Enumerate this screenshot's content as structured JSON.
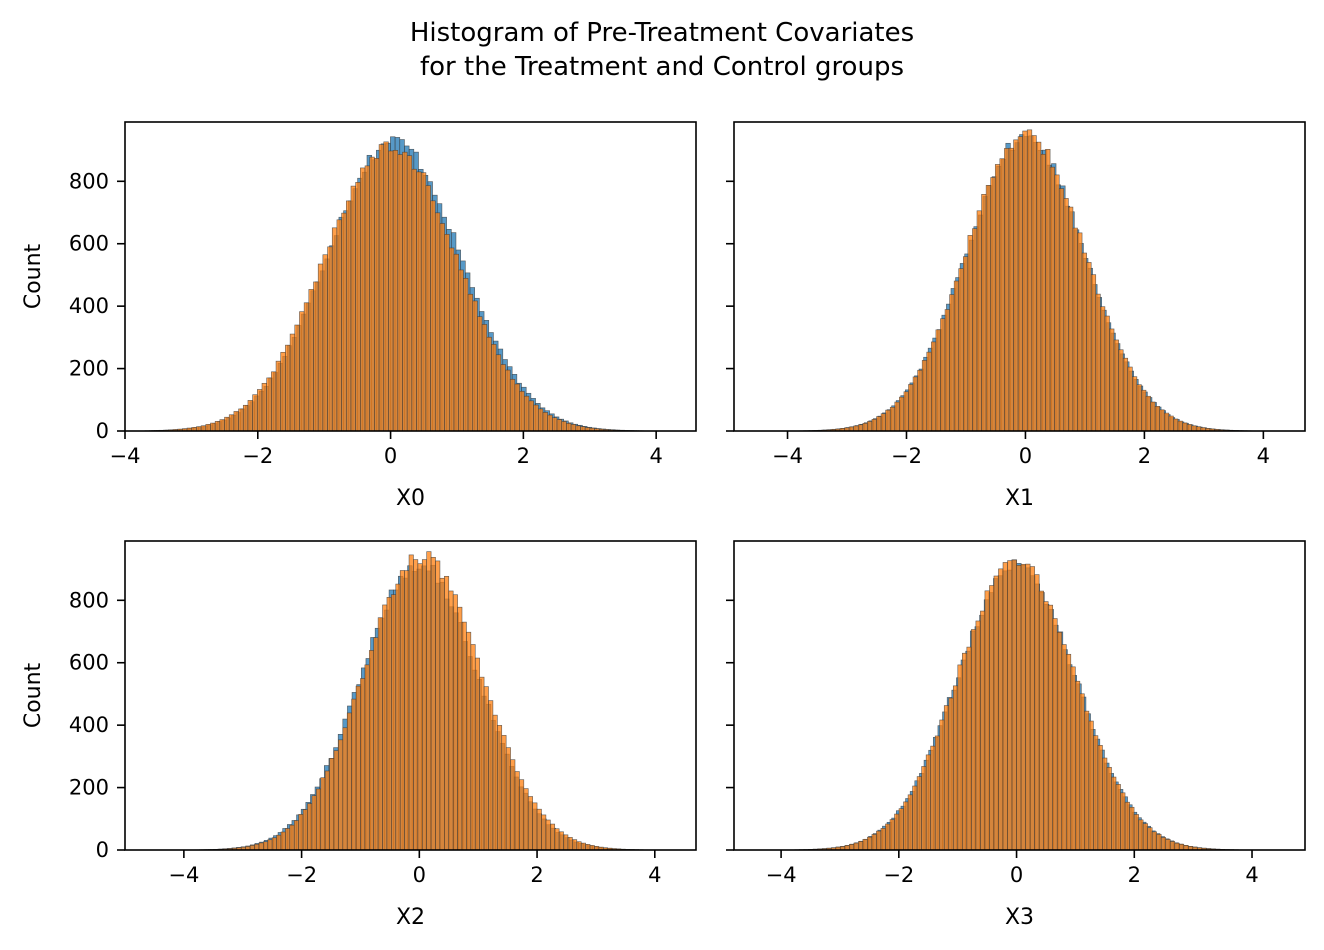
{
  "figure": {
    "title_line1": "Histogram of Pre-Treatment Covariates",
    "title_line2": "for the Treatment and Control groups"
  },
  "colors": {
    "treatment": "#1f77b4",
    "control": "#ff7f0e"
  },
  "chart_data": [
    {
      "type": "bar",
      "panel": "top-left",
      "xlabel": "X0",
      "ylabel": "Count",
      "xlim": [
        -4,
        4.6
      ],
      "ylim": [
        0,
        990
      ],
      "xticks": [
        -4,
        -2,
        0,
        2,
        4
      ],
      "yticks": [
        0,
        200,
        400,
        600,
        800
      ],
      "show_ytick_labels": true,
      "grid": false,
      "series": [
        {
          "color": "#1f77b4",
          "mean": 0.05,
          "sd": 1.0,
          "peak": 930,
          "x_range": [
            -3.6,
            4.3
          ]
        },
        {
          "color": "#ff7f0e",
          "mean": 0.0,
          "sd": 1.0,
          "peak": 915,
          "x_range": [
            -3.7,
            4.2
          ]
        }
      ]
    },
    {
      "type": "bar",
      "panel": "top-right",
      "xlabel": "X1",
      "ylabel": "",
      "xlim": [
        -4.9,
        4.7
      ],
      "ylim": [
        0,
        990
      ],
      "xticks": [
        -4,
        -2,
        0,
        2,
        4
      ],
      "yticks": [
        0,
        200,
        400,
        600,
        800
      ],
      "show_ytick_labels": false,
      "grid": false,
      "series": [
        {
          "color": "#1f77b4",
          "mean": 0.0,
          "sd": 1.0,
          "peak": 940,
          "x_range": [
            -4.4,
            4.2
          ]
        },
        {
          "color": "#ff7f0e",
          "mean": 0.0,
          "sd": 1.0,
          "peak": 945,
          "x_range": [
            -4.5,
            4.1
          ]
        }
      ]
    },
    {
      "type": "bar",
      "panel": "bottom-left",
      "xlabel": "X2",
      "ylabel": "Count",
      "xlim": [
        -5,
        4.7
      ],
      "ylim": [
        0,
        990
      ],
      "xticks": [
        -4,
        -2,
        0,
        2,
        4
      ],
      "yticks": [
        0,
        200,
        400,
        600,
        800
      ],
      "show_ytick_labels": true,
      "grid": false,
      "series": [
        {
          "color": "#1f77b4",
          "mean": 0.0,
          "sd": 1.0,
          "peak": 915,
          "x_range": [
            -4.6,
            4.2
          ]
        },
        {
          "color": "#ff7f0e",
          "mean": 0.05,
          "sd": 1.0,
          "peak": 940,
          "x_range": [
            -4.3,
            4.1
          ]
        }
      ]
    },
    {
      "type": "bar",
      "panel": "bottom-right",
      "xlabel": "X3",
      "ylabel": "",
      "xlim": [
        -4.8,
        4.9
      ],
      "ylim": [
        0,
        990
      ],
      "xticks": [
        -4,
        -2,
        0,
        2,
        4
      ],
      "yticks": [
        0,
        200,
        400,
        600,
        800
      ],
      "show_ytick_labels": false,
      "grid": false,
      "series": [
        {
          "color": "#1f77b4",
          "mean": 0.0,
          "sd": 1.0,
          "peak": 915,
          "x_range": [
            -4.4,
            4.4
          ]
        },
        {
          "color": "#ff7f0e",
          "mean": 0.0,
          "sd": 1.0,
          "peak": 920,
          "x_range": [
            -4.3,
            4.3
          ]
        }
      ]
    }
  ]
}
